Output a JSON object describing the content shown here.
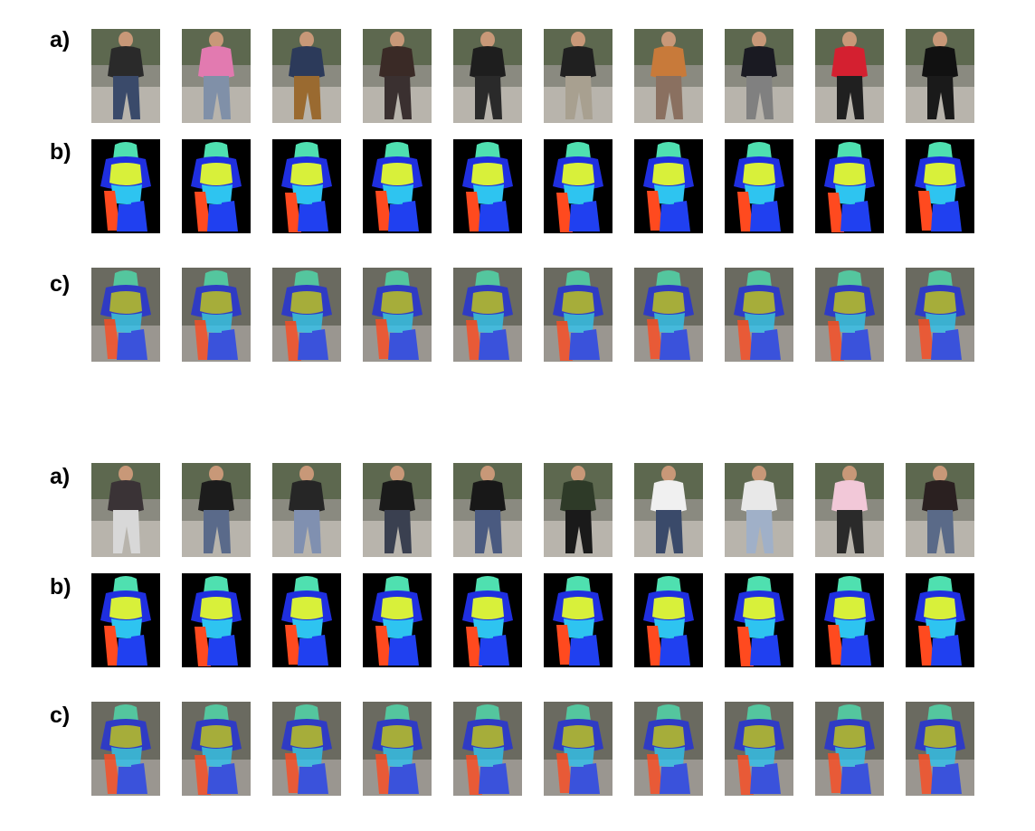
{
  "groups": [
    {
      "rows": [
        {
          "label": "a)",
          "kind": "photo"
        },
        {
          "label": "b)",
          "kind": "mask"
        },
        {
          "label": "c)",
          "kind": "overlay"
        }
      ]
    },
    {
      "rows": [
        {
          "label": "a)",
          "kind": "photo"
        },
        {
          "label": "b)",
          "kind": "mask"
        },
        {
          "label": "c)",
          "kind": "overlay"
        }
      ]
    }
  ],
  "palette": {
    "head": "#4fe0b0",
    "upper_body": "#d8f03a",
    "body_outline": "#1f2fe0",
    "lower_body": "#2ec4f0",
    "left_leg": "#ff4a1f",
    "right_leg": "#2040f0",
    "mask_background": "#000000"
  },
  "photo_tops": [
    "#2a2a2a",
    "#e27ab0",
    "#2c3a5a",
    "#3a2a26",
    "#1e1e1e",
    "#202020",
    "#c87a3a",
    "#1a1a22",
    "#d42030",
    "#111111",
    "#3a3336",
    "#1c1c1c",
    "#262626",
    "#1a1a1a",
    "#181818",
    "#2e3a28",
    "#f0f0f0",
    "#e8e8e8",
    "#f2c8d8",
    "#2a2020"
  ],
  "photo_bottoms": [
    "#3a4a6a",
    "#8090a8",
    "#9a6a30",
    "#3a3030",
    "#2a2a2a",
    "#a8a090",
    "#8a7060",
    "#808080",
    "#202020",
    "#1a1a1a",
    "#d8d8d8",
    "#5a6a8a",
    "#8090b0",
    "#3a4050",
    "#4a5a80",
    "#1a1a1a",
    "#3a4a6a",
    "#a0b0c8",
    "#2a2a2a",
    "#5a6a88"
  ]
}
